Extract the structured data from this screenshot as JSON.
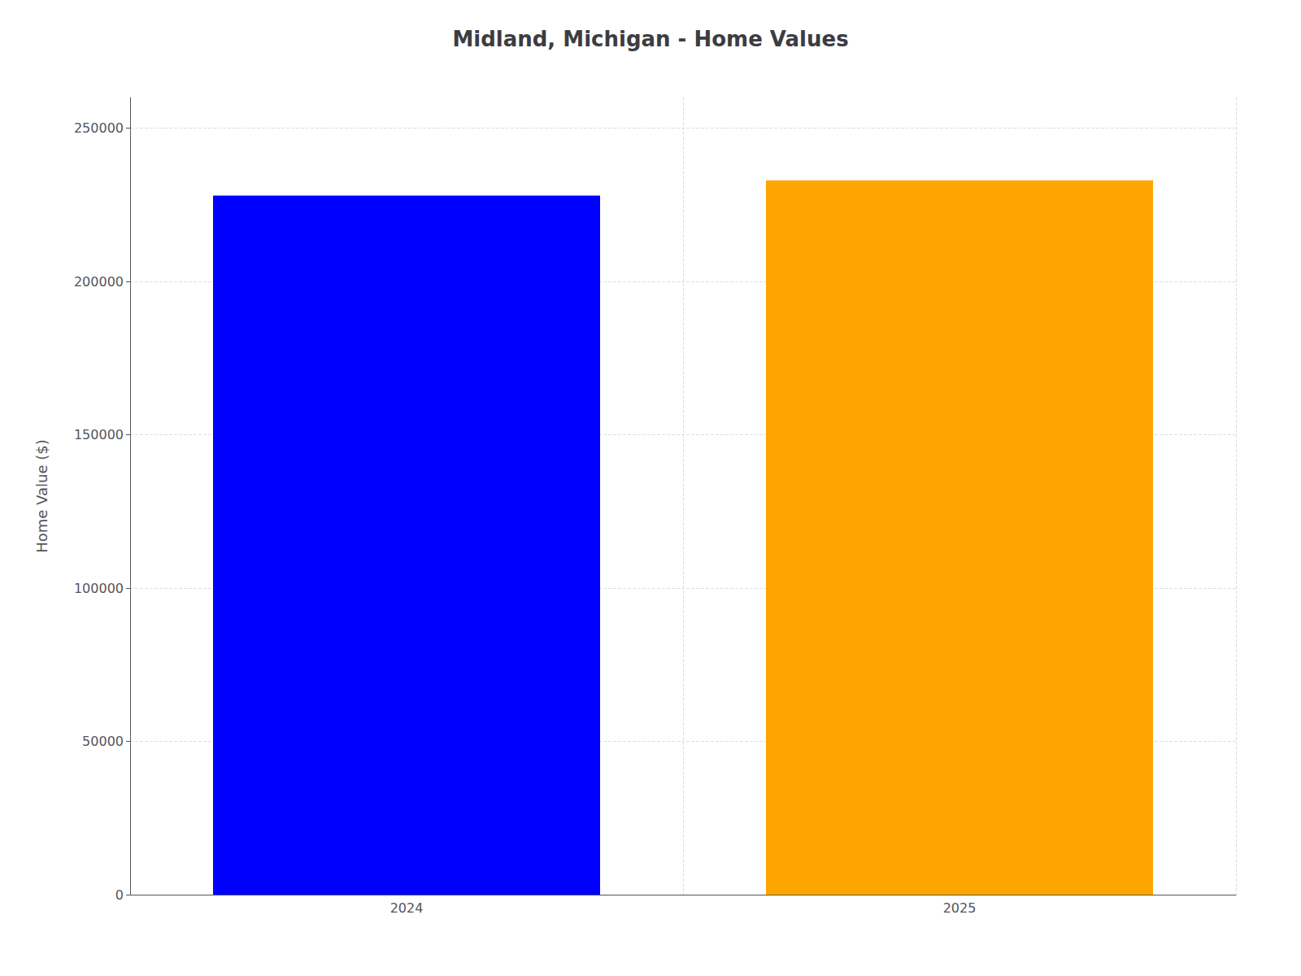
{
  "chart_data": {
    "type": "bar",
    "title": "Midland, Michigan - Home Values",
    "ylabel": "Home Value ($)",
    "categories": [
      "2024",
      "2025"
    ],
    "values": [
      228000,
      233000
    ],
    "colors": [
      "#0000ff",
      "#ffa500"
    ],
    "ylim": [
      0,
      260000
    ],
    "yticks": [
      0,
      50000,
      100000,
      150000,
      200000,
      250000
    ],
    "grid": true
  }
}
